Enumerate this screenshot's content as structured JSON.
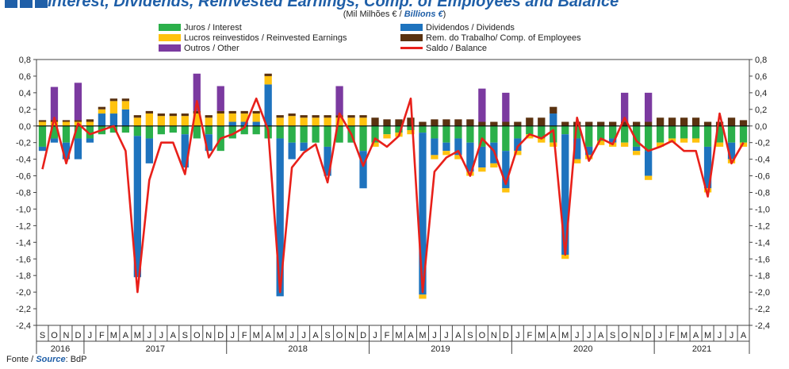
{
  "header": {
    "title": "Interest, Dividends, Reinvested Earnings, Comp. of Employees and Balance",
    "unit_pt": "(Mil Milhões € /",
    "unit_en": "Billions €",
    "unit_end": ")"
  },
  "source": {
    "label_pt": "Fonte /",
    "label_en": "Source",
    "value": ": BdP"
  },
  "colors": {
    "interest": "#2bb04a",
    "dividends": "#1e73be",
    "reinvested": "#ffc20e",
    "employees": "#5a3210",
    "other": "#7b3aa0",
    "balance": "#e8201a"
  },
  "chart_data": {
    "type": "bar",
    "stacked": true,
    "ylim": [
      -2.4,
      0.8
    ],
    "y_ticks": [
      "0,8",
      "0,6",
      "0,4",
      "0,2",
      "0,0",
      "-0,2",
      "-0,4",
      "-0,6",
      "-0,8",
      "-1,0",
      "-1,2",
      "-1,4",
      "-1,6",
      "-1,8",
      "-2,0",
      "-2,2",
      "-2,4"
    ],
    "categories": [
      "S",
      "O",
      "N",
      "D",
      "J",
      "F",
      "M",
      "A",
      "M",
      "J",
      "J",
      "A",
      "S",
      "O",
      "N",
      "D",
      "J",
      "F",
      "M",
      "A",
      "M",
      "J",
      "J",
      "A",
      "S",
      "O",
      "N",
      "D",
      "J",
      "F",
      "M",
      "A",
      "M",
      "J",
      "J",
      "A",
      "S",
      "O",
      "N",
      "D",
      "J",
      "F",
      "M",
      "A",
      "M",
      "J",
      "J",
      "A",
      "S",
      "O",
      "N",
      "D",
      "J",
      "F",
      "M",
      "A",
      "M",
      "J",
      "J",
      "A"
    ],
    "years": [
      {
        "label": "2016",
        "months": 4
      },
      {
        "label": "2017",
        "months": 12
      },
      {
        "label": "2018",
        "months": 12
      },
      {
        "label": "2019",
        "months": 12
      },
      {
        "label": "2020",
        "months": 12
      },
      {
        "label": "2021",
        "months": 8
      }
    ],
    "series": [
      {
        "key": "interest",
        "name": "Juros / Interest",
        "color": "#2bb04a",
        "values": [
          -0.25,
          -0.15,
          -0.2,
          -0.15,
          -0.15,
          -0.1,
          -0.08,
          -0.08,
          -0.12,
          -0.15,
          -0.1,
          -0.08,
          -0.1,
          -0.15,
          -0.1,
          -0.3,
          -0.15,
          -0.1,
          -0.1,
          -0.15,
          -0.15,
          -0.2,
          -0.2,
          -0.2,
          -0.25,
          -0.2,
          -0.2,
          -0.3,
          -0.2,
          -0.1,
          -0.08,
          -0.05,
          -0.08,
          -0.15,
          -0.2,
          -0.15,
          -0.2,
          -0.25,
          -0.2,
          -0.3,
          -0.15,
          -0.1,
          -0.15,
          -0.2,
          -0.1,
          -0.15,
          -0.25,
          -0.18,
          -0.15,
          -0.2,
          -0.25,
          -0.3,
          -0.2,
          -0.15,
          -0.15,
          -0.15,
          -0.25,
          -0.2,
          -0.2,
          -0.2
        ]
      },
      {
        "key": "dividends",
        "name": "Dividendos / Dividends",
        "color": "#1e73be",
        "values": [
          -0.05,
          -0.05,
          -0.2,
          -0.25,
          -0.05,
          0.15,
          0.15,
          0.2,
          -1.7,
          -0.3,
          0,
          0,
          -0.4,
          0,
          -0.2,
          0,
          0.05,
          0.05,
          0.05,
          0.5,
          -1.9,
          -0.2,
          -0.1,
          0,
          -0.35,
          0,
          0,
          -0.45,
          0,
          0,
          0,
          0,
          -1.95,
          -0.2,
          -0.1,
          -0.2,
          -0.35,
          -0.25,
          -0.25,
          -0.45,
          -0.15,
          0,
          0,
          0.15,
          -1.45,
          -0.25,
          -0.1,
          0,
          -0.05,
          0,
          -0.05,
          -0.3,
          0,
          0,
          0,
          0,
          -0.5,
          0,
          -0.2,
          0
        ]
      },
      {
        "key": "reinvested",
        "name": "Lucros reinvestidos / Reinvested Earnings",
        "color": "#ffc20e",
        "values": [
          0.05,
          0.05,
          0.05,
          0.05,
          0.05,
          0.05,
          0.15,
          0.1,
          0.1,
          0.15,
          0.12,
          0.12,
          0.12,
          0.15,
          0.1,
          0.15,
          0.1,
          0.1,
          0.1,
          0.1,
          0.1,
          0.12,
          0.1,
          0.1,
          0.1,
          0.1,
          0.1,
          0.1,
          -0.05,
          -0.05,
          -0.05,
          -0.05,
          -0.05,
          -0.05,
          -0.05,
          -0.05,
          -0.05,
          -0.05,
          -0.05,
          -0.05,
          -0.05,
          -0.05,
          -0.05,
          -0.05,
          -0.05,
          -0.05,
          -0.05,
          -0.05,
          -0.05,
          -0.05,
          -0.05,
          -0.05,
          -0.05,
          -0.05,
          -0.05,
          -0.05,
          -0.05,
          -0.05,
          -0.05,
          -0.05
        ]
      },
      {
        "key": "employees",
        "name": "Rem. do Trabalho/ Comp. of Employees",
        "color": "#5a3210",
        "values": [
          0.02,
          0.02,
          0.02,
          0.02,
          0.03,
          0.03,
          0.03,
          0.03,
          0.03,
          0.03,
          0.03,
          0.03,
          0.03,
          0.03,
          0.03,
          0.03,
          0.03,
          0.03,
          0.03,
          0.03,
          0.03,
          0.03,
          0.03,
          0.03,
          0.03,
          0.03,
          0.03,
          0.03,
          0.1,
          0.08,
          0.08,
          0.1,
          0.05,
          0.08,
          0.08,
          0.08,
          0.08,
          0.05,
          0.05,
          0.05,
          0.05,
          0.1,
          0.1,
          0.08,
          0.05,
          0.05,
          0.05,
          0.05,
          0.05,
          0.05,
          0.05,
          0.05,
          0.1,
          0.1,
          0.1,
          0.1,
          0.05,
          0.05,
          0.1,
          0.07
        ]
      },
      {
        "key": "other",
        "name": "Outros / Other",
        "color": "#7b3aa0",
        "values": [
          0,
          0.4,
          0,
          0.45,
          0,
          0,
          0,
          0,
          0,
          0,
          0,
          0,
          0,
          0.45,
          0,
          0.3,
          0,
          0,
          0,
          0,
          0,
          0,
          0,
          0,
          0,
          0.35,
          0,
          0,
          0,
          0,
          0,
          0,
          0,
          0,
          0,
          0,
          0,
          0.4,
          0,
          0.35,
          0,
          0,
          0,
          0,
          0,
          0,
          0,
          0,
          0,
          0.35,
          0,
          0.35,
          0,
          0,
          0,
          0,
          0,
          0,
          0,
          0
        ]
      },
      {
        "key": "balance",
        "name": "Saldo / Balance",
        "color": "#e8201a",
        "type": "line",
        "values": [
          -0.52,
          0.1,
          -0.45,
          0.03,
          -0.1,
          -0.05,
          0.0,
          -0.3,
          -2.0,
          -0.65,
          -0.2,
          -0.2,
          -0.58,
          0.3,
          -0.38,
          -0.15,
          -0.1,
          -0.02,
          0.33,
          -0.05,
          -2.0,
          -0.5,
          -0.32,
          -0.22,
          -0.68,
          0.15,
          -0.1,
          -0.48,
          -0.15,
          -0.25,
          -0.12,
          0.33,
          -2.0,
          -0.55,
          -0.38,
          -0.3,
          -0.6,
          -0.15,
          -0.3,
          -0.7,
          -0.25,
          -0.1,
          -0.15,
          -0.05,
          -1.55,
          0.1,
          -0.42,
          -0.15,
          -0.22,
          0.1,
          -0.18,
          -0.3,
          -0.25,
          -0.18,
          -0.3,
          -0.3,
          -0.85,
          0.15,
          -0.45,
          -0.2
        ]
      }
    ]
  }
}
